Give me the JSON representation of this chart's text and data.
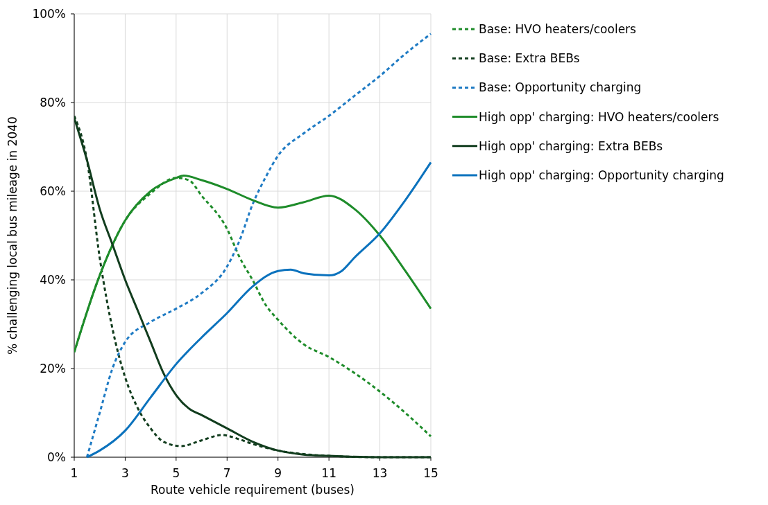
{
  "chart_data": {
    "type": "line",
    "xlabel": "Route vehicle requirement (buses)",
    "ylabel": "% challenging local bus mileage in 2040",
    "xlim": [
      1,
      15
    ],
    "xticks": [
      1,
      3,
      5,
      7,
      9,
      11,
      13,
      15
    ],
    "ylim": [
      0,
      100
    ],
    "yticks": [
      {
        "value": 0,
        "label": "0%"
      },
      {
        "value": 20,
        "label": "20%"
      },
      {
        "value": 40,
        "label": "40%"
      },
      {
        "value": 60,
        "label": "60%"
      },
      {
        "value": 80,
        "label": "80%"
      },
      {
        "value": 100,
        "label": "100%"
      }
    ],
    "grid": true,
    "legend": "right",
    "marker": "none",
    "series": [
      {
        "name": "Base: HVO heaters/coolers",
        "color": "#1e8c2a",
        "line_style": "dashed",
        "x": [
          1,
          2,
          3,
          4,
          5,
          5.5,
          6,
          7,
          7.5,
          8,
          8.5,
          9,
          10,
          11,
          12,
          13,
          14,
          15
        ],
        "values": [
          23.7,
          41,
          53.4,
          59.5,
          63,
          62.5,
          59,
          51.5,
          45,
          40,
          34.5,
          31,
          25.5,
          22.6,
          19,
          14.8,
          10,
          4.7
        ]
      },
      {
        "name": "Base: Extra BEBs",
        "color": "#123d1e",
        "line_style": "dashed",
        "x": [
          1,
          1.5,
          2,
          2.5,
          3,
          3.5,
          4,
          4.5,
          5.2,
          6,
          6.8,
          7.5,
          8,
          9,
          10,
          11,
          13,
          15
        ],
        "values": [
          77,
          67,
          45,
          29,
          18,
          11,
          6.5,
          3.5,
          2.5,
          3.8,
          5,
          4,
          3,
          1.5,
          0.7,
          0.3,
          0,
          0
        ]
      },
      {
        "name": "Base: Opportunity charging",
        "color": "#1f7bc4",
        "line_style": "dashed",
        "x": [
          1.5,
          2,
          2.5,
          3,
          4,
          5,
          6,
          7,
          7.5,
          8,
          8.5,
          9,
          10,
          11,
          12,
          13,
          14,
          15
        ],
        "values": [
          0,
          10,
          20,
          26,
          30.5,
          33.5,
          37,
          43,
          49,
          57,
          63,
          68,
          73,
          77,
          81.5,
          86,
          91,
          95.5
        ]
      },
      {
        "name": "High opp' charging: HVO heaters/coolers",
        "color": "#1e8c2a",
        "line_style": "solid",
        "x": [
          1,
          2,
          3,
          4,
          5,
          5.3,
          6,
          7,
          8,
          9,
          10,
          11,
          12,
          13,
          14,
          15
        ],
        "values": [
          23.7,
          41,
          53.4,
          60,
          63,
          63.5,
          62.5,
          60.5,
          58,
          56.3,
          57.5,
          59,
          56,
          50,
          42,
          33.5
        ]
      },
      {
        "name": "High opp' charging: Extra BEBs",
        "color": "#123d1e",
        "line_style": "solid",
        "x": [
          1,
          1.5,
          2,
          2.5,
          3,
          3.5,
          4,
          4.5,
          5,
          5.5,
          6,
          7,
          8,
          9,
          10,
          11,
          13,
          15
        ],
        "values": [
          76.5,
          67,
          56,
          48,
          40,
          33,
          26,
          19,
          14,
          11,
          9.5,
          6.5,
          3.5,
          1.5,
          0.6,
          0.3,
          0,
          0
        ]
      },
      {
        "name": "High opp' charging: Opportunity charging",
        "color": "#0b72bd",
        "line_style": "solid",
        "x": [
          1.5,
          2,
          3,
          4,
          5,
          6,
          7,
          8,
          9,
          9.5,
          10,
          11,
          11.5,
          12,
          13,
          14,
          15
        ],
        "values": [
          0,
          1.5,
          6,
          13.5,
          21,
          27,
          32.5,
          38.5,
          42,
          42.3,
          41.5,
          41,
          42,
          45,
          50.5,
          58,
          66.5
        ]
      }
    ]
  }
}
